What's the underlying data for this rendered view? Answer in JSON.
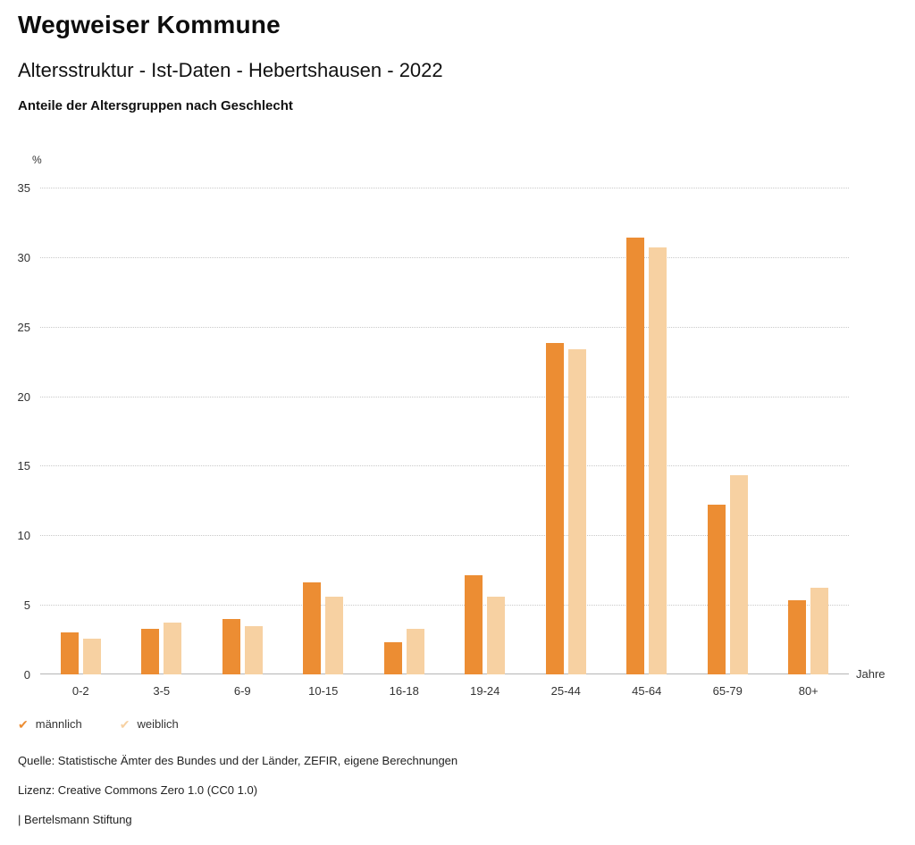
{
  "header": {
    "title": "Wegweiser Kommune",
    "subtitle": "Altersstruktur - Ist-Daten - Hebertshausen - 2022",
    "chart_subtitle": "Anteile der Altersgruppen nach Geschlecht"
  },
  "chart_data": {
    "type": "bar",
    "title": "Anteile der Altersgruppen nach Geschlecht",
    "unit_y": "%",
    "unit_x": "Jahre",
    "categories": [
      "0-2",
      "3-5",
      "6-9",
      "10-15",
      "16-18",
      "19-24",
      "25-44",
      "45-64",
      "65-79",
      "80+"
    ],
    "series": [
      {
        "name": "männlich",
        "color": "#EC8D33",
        "values": [
          3.0,
          3.3,
          4.0,
          6.6,
          2.3,
          7.1,
          23.8,
          31.4,
          12.2,
          5.3
        ]
      },
      {
        "name": "weiblich",
        "color": "#F7D1A2",
        "values": [
          2.6,
          3.7,
          3.5,
          5.6,
          3.3,
          5.6,
          23.4,
          30.7,
          14.3,
          6.2
        ]
      }
    ],
    "ylim": [
      0,
      35
    ],
    "ytick_step": 5,
    "grid": "dotted-horizontal",
    "legend_position": "bottom-left"
  },
  "legend": {
    "items": [
      {
        "label": "männlich",
        "color": "#EC8D33"
      },
      {
        "label": "weiblich",
        "color": "#F7D1A2"
      }
    ]
  },
  "footer": {
    "source": "Quelle: Statistische Ämter des Bundes und der Länder, ZEFIR, eigene Berechnungen",
    "license": "Lizenz: Creative Commons Zero 1.0 (CC0 1.0)",
    "attribution": "| Bertelsmann Stiftung"
  }
}
